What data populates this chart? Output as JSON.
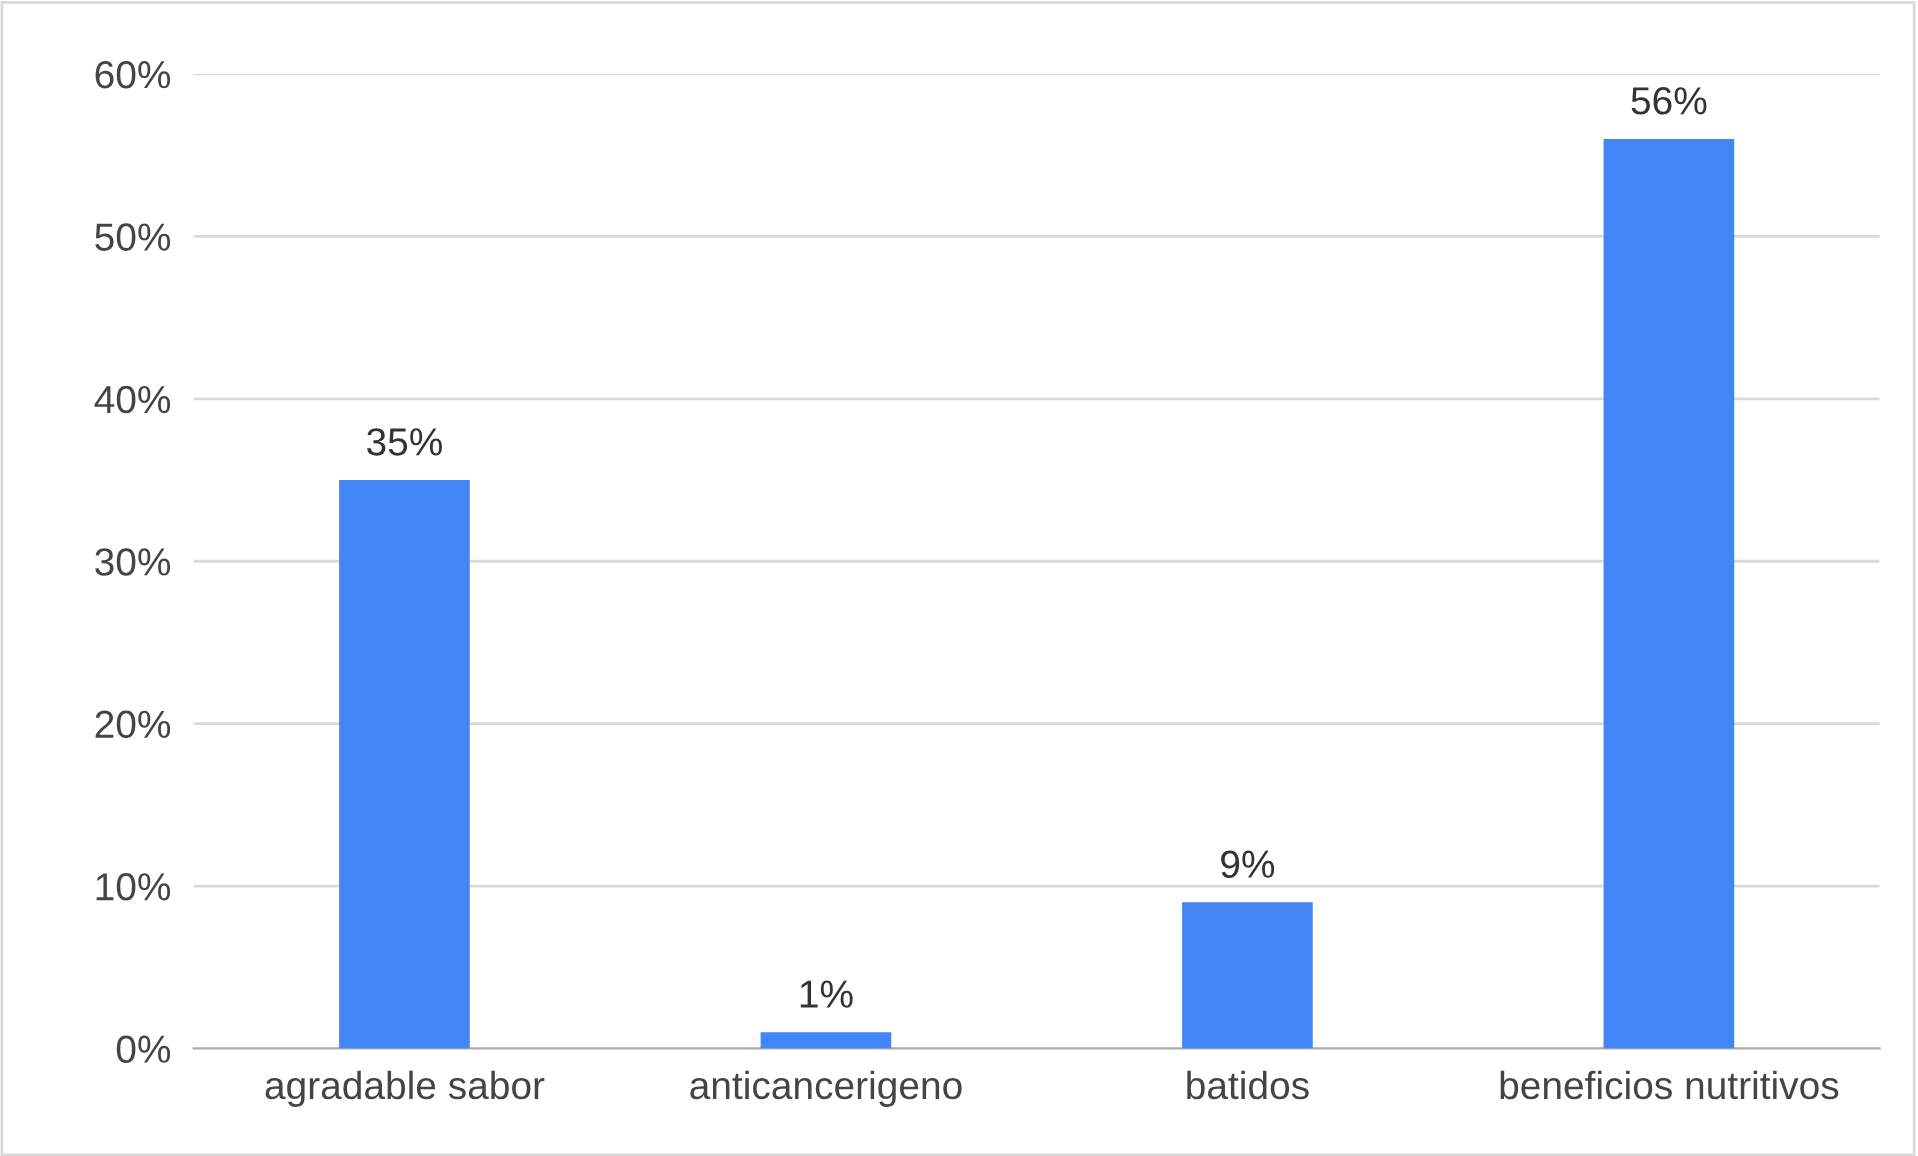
{
  "chart_data": {
    "type": "bar",
    "categories": [
      "agradable sabor",
      "anticancerigeno",
      "batidos",
      "beneficios nutritivos"
    ],
    "values": [
      35,
      1,
      9,
      56
    ],
    "value_labels": [
      "35%",
      "1%",
      "9%",
      "56%"
    ],
    "color": "#4285f4",
    "ylim": [
      0,
      60
    ],
    "yticks": [
      {
        "value": 0,
        "label": "0%"
      },
      {
        "value": 10,
        "label": "10%"
      },
      {
        "value": 20,
        "label": "20%"
      },
      {
        "value": 30,
        "label": "30%"
      },
      {
        "value": 40,
        "label": "40%"
      },
      {
        "value": 50,
        "label": "50%"
      },
      {
        "value": 60,
        "label": "60%"
      }
    ],
    "grid": "y",
    "legend": false
  }
}
